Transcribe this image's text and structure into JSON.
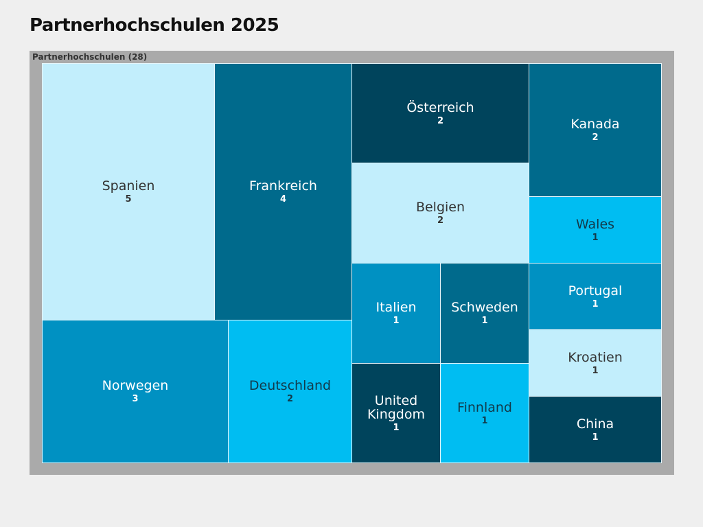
{
  "chart_data": {
    "type": "treemap",
    "title": "Partnerhochschulen 2025",
    "root": {
      "label": "Partnerhochschulen (28)",
      "value": 28
    },
    "items": [
      {
        "label": "Spanien",
        "value": 5,
        "color": "#c2eefc",
        "text_color": "#333333"
      },
      {
        "label": "Frankreich",
        "value": 4,
        "color": "#006a8c",
        "text_color": "#ffffff"
      },
      {
        "label": "Norwegen",
        "value": 3,
        "color": "#0091c2",
        "text_color": "#ffffff"
      },
      {
        "label": "Deutschland",
        "value": 2,
        "color": "#00bdf2",
        "text_color": "#123a4a"
      },
      {
        "label": "Österreich",
        "value": 2,
        "color": "#00445c",
        "text_color": "#ffffff"
      },
      {
        "label": "Belgien",
        "value": 2,
        "color": "#c2eefc",
        "text_color": "#333333"
      },
      {
        "label": "Italien",
        "value": 1,
        "color": "#0091c2",
        "text_color": "#ffffff"
      },
      {
        "label": "Schweden",
        "value": 1,
        "color": "#006a8c",
        "text_color": "#ffffff"
      },
      {
        "label": "United Kingdom",
        "value": 1,
        "color": "#00445c",
        "text_color": "#ffffff"
      },
      {
        "label": "Finnland",
        "value": 1,
        "color": "#00bdf2",
        "text_color": "#123a4a"
      },
      {
        "label": "Kanada",
        "value": 2,
        "color": "#006a8c",
        "text_color": "#ffffff"
      },
      {
        "label": "Wales",
        "value": 1,
        "color": "#00bdf2",
        "text_color": "#123a4a"
      },
      {
        "label": "Portugal",
        "value": 1,
        "color": "#0091c2",
        "text_color": "#ffffff"
      },
      {
        "label": "Kroatien",
        "value": 1,
        "color": "#c2eefc",
        "text_color": "#333333"
      },
      {
        "label": "China",
        "value": 1,
        "color": "#00445c",
        "text_color": "#ffffff"
      }
    ]
  }
}
